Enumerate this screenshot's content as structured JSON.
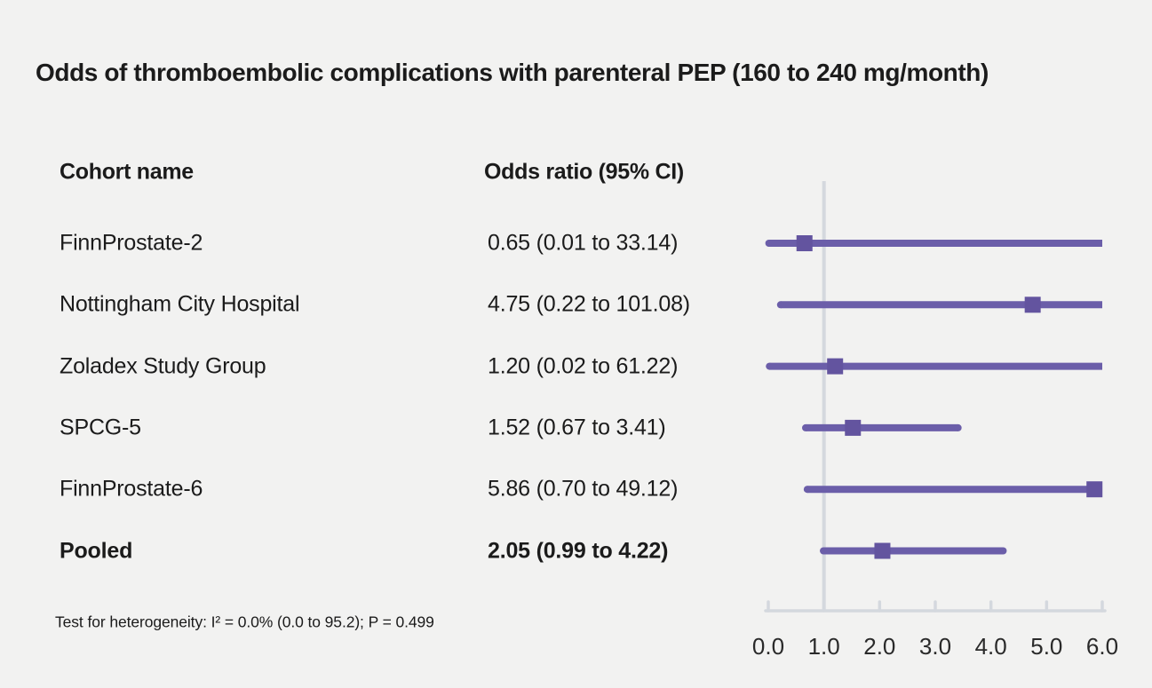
{
  "title": "Odds of thromboembolic complications with parenteral PEP (160 to 240 mg/month)",
  "table": {
    "col_cohort": "Cohort name",
    "col_or": "Odds ratio (95% CI)",
    "rows": [
      {
        "name": "FinnProstate-2",
        "or_text": "0.65 (0.01 to 33.14)",
        "bold": false
      },
      {
        "name": "Nottingham City Hospital",
        "or_text": "4.75 (0.22 to 101.08)",
        "bold": false
      },
      {
        "name": "Zoladex Study Group",
        "or_text": "1.20 (0.02 to 61.22)",
        "bold": false
      },
      {
        "name": "SPCG-5",
        "or_text": "1.52 (0.67 to 3.41)",
        "bold": false
      },
      {
        "name": "FinnProstate-6",
        "or_text": "5.86 (0.70 to 49.12)",
        "bold": false
      },
      {
        "name": "Pooled",
        "or_text": "2.05 (0.99 to 4.22)",
        "bold": true
      }
    ]
  },
  "footnote": "Test for heterogeneity: I² = 0.0% (0.0 to 95.2); P = 0.499",
  "chart_data": {
    "type": "scatter",
    "variant": "forest-plot",
    "title": "Odds of thromboembolic complications with parenteral PEP (160 to 240 mg/month)",
    "xlabel": "Odds ratio (95% CI)",
    "xlim": [
      0,
      6
    ],
    "xticks": [
      0,
      1,
      2,
      3,
      4,
      5,
      6
    ],
    "xtick_labels": [
      "0.0",
      "1.0",
      "2.0",
      "3.0",
      "4.0",
      "5.0",
      "6.0"
    ],
    "reference_line_x": 1.0,
    "grid": false,
    "ci_clipped_at_xmax": true,
    "points": [
      {
        "label": "FinnProstate-2",
        "or": 0.65,
        "ci_low": 0.01,
        "ci_high": 33.14,
        "pooled": false
      },
      {
        "label": "Nottingham City Hospital",
        "or": 4.75,
        "ci_low": 0.22,
        "ci_high": 101.08,
        "pooled": false
      },
      {
        "label": "Zoladex Study Group",
        "or": 1.2,
        "ci_low": 0.02,
        "ci_high": 61.22,
        "pooled": false
      },
      {
        "label": "SPCG-5",
        "or": 1.52,
        "ci_low": 0.67,
        "ci_high": 3.41,
        "pooled": false
      },
      {
        "label": "FinnProstate-6",
        "or": 5.86,
        "ci_low": 0.7,
        "ci_high": 49.12,
        "pooled": false
      },
      {
        "label": "Pooled",
        "or": 2.05,
        "ci_low": 0.99,
        "ci_high": 4.22,
        "pooled": true
      }
    ],
    "heterogeneity_note": "Test for heterogeneity: I² = 0.0% (0.0 to 95.2); P = 0.499"
  },
  "colors": {
    "background": "#f2f2f1",
    "text": "#1b1b1b",
    "ci_line": "#6b5ea9",
    "marker": "#63549f",
    "axis": "#d4d8de"
  }
}
